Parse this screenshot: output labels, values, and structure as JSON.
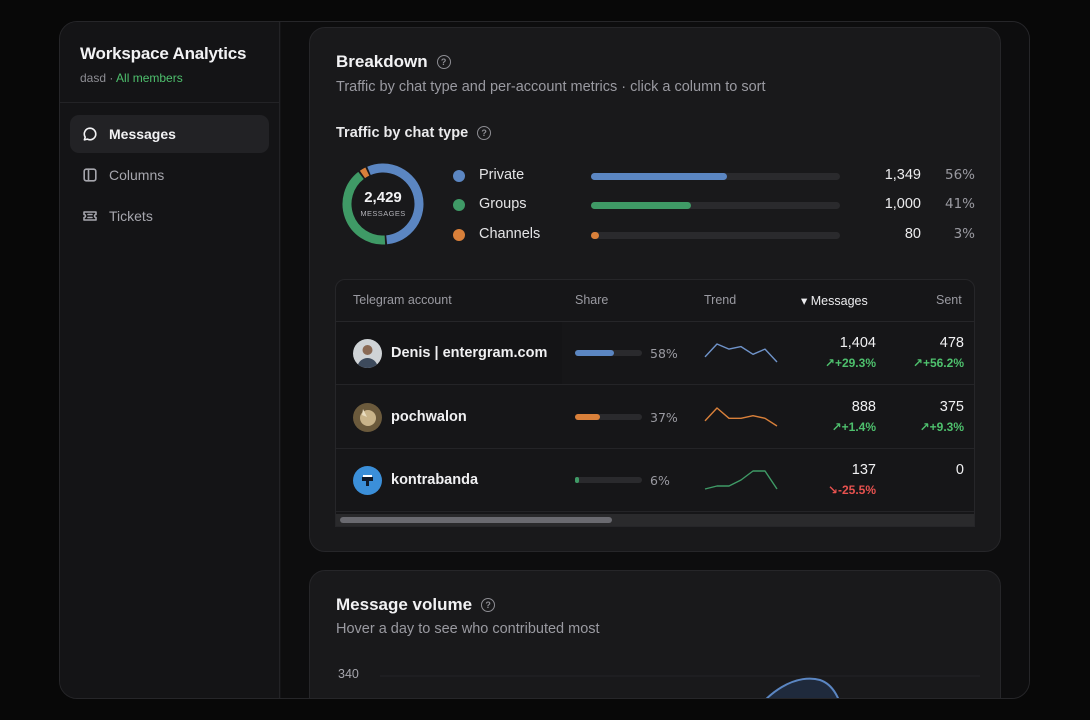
{
  "sidebar": {
    "title": "Workspace Analytics",
    "workspace": "dasd",
    "separator": " · ",
    "scope": "All members",
    "items": [
      {
        "label": "Messages",
        "icon": "chat-bubble-icon",
        "active": true
      },
      {
        "label": "Columns",
        "icon": "columns-icon",
        "active": false
      },
      {
        "label": "Tickets",
        "icon": "ticket-icon",
        "active": false
      }
    ]
  },
  "breakdown": {
    "title": "Breakdown",
    "subtitle": "Traffic by chat type and per-account metrics · click a column to sort",
    "traffic_title": "Traffic by chat type",
    "total": "2,429",
    "total_label": "MESSAGES",
    "chat_types": [
      {
        "name": "Private",
        "count": "1,349",
        "pct": "56%",
        "value": 1349,
        "color": "#5b86c2"
      },
      {
        "name": "Groups",
        "count": "1,000",
        "pct": "41%",
        "value": 1000,
        "color": "#3f9a66"
      },
      {
        "name": "Channels",
        "count": "80",
        "pct": "3%",
        "value": 80,
        "color": "#d9803a"
      }
    ],
    "table": {
      "headers": {
        "account": "Telegram account",
        "share": "Share",
        "trend": "Trend",
        "messages": "▾ Messages",
        "sent": "Sent"
      },
      "rows": [
        {
          "name": "Denis | entergram.com",
          "share_pct": "58%",
          "share": 0.58,
          "share_color": "#5b86c2",
          "trend_color": "#6f93c9",
          "trend": [
            4,
            9,
            7,
            8,
            5,
            7,
            2
          ],
          "messages": "1,404",
          "messages_delta": "+29.3%",
          "messages_dir": "up",
          "sent": "478",
          "sent_delta": "+56.2%",
          "sent_dir": "up"
        },
        {
          "name": "pochwalon",
          "share_pct": "37%",
          "share": 0.37,
          "share_color": "#d9803a",
          "trend_color": "#d9803a",
          "trend": [
            3,
            8,
            4,
            4,
            5,
            4,
            1
          ],
          "messages": "888",
          "messages_delta": "+1.4%",
          "messages_dir": "up",
          "sent": "375",
          "sent_delta": "+9.3%",
          "sent_dir": "up"
        },
        {
          "name": "kontrabanda",
          "share_pct": "6%",
          "share": 0.06,
          "share_color": "#3f9a66",
          "trend_color": "#3f9a66",
          "trend": [
            3,
            4,
            4,
            6,
            9,
            9,
            3
          ],
          "messages": "137",
          "messages_delta": "-25.5%",
          "messages_dir": "down",
          "sent": "0",
          "sent_delta": "",
          "sent_dir": "none"
        }
      ]
    }
  },
  "volume": {
    "title": "Message volume",
    "subtitle": "Hover a day to see who contributed most",
    "y_top": "340",
    "line_color": "#5b86c2"
  },
  "icons": {
    "help": "?",
    "trend_up": "↗",
    "trend_down": "↘"
  }
}
